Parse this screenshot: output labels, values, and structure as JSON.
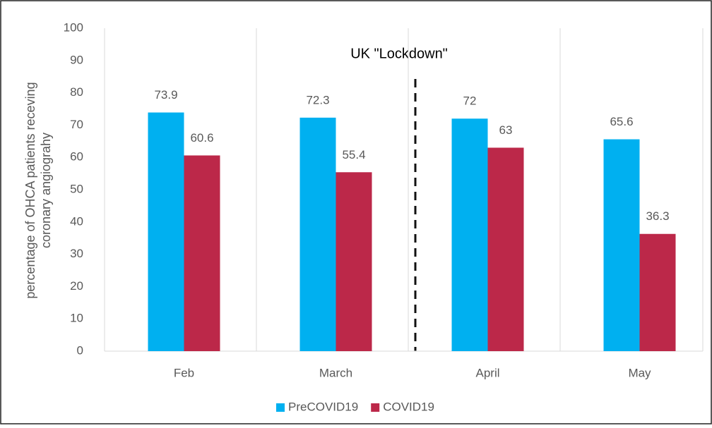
{
  "chart_data": {
    "type": "bar",
    "annotation": "UK \"Lockdown\"",
    "ylabel": [
      "percentage of  OHCA patients receving",
      "coronary angiograhy"
    ],
    "categories": [
      "Feb",
      "March",
      "April",
      "May"
    ],
    "series": [
      {
        "name": "PreCOVID19",
        "color": "#00b0f0",
        "values": [
          73.9,
          72.3,
          72,
          65.6
        ]
      },
      {
        "name": "COVID19",
        "color": "#bc2849",
        "values": [
          60.6,
          55.4,
          63,
          36.3
        ]
      }
    ],
    "ylim": [
      0,
      100
    ],
    "yticks": [
      0,
      10,
      20,
      30,
      40,
      50,
      60,
      70,
      80,
      90,
      100
    ],
    "grid": false,
    "legend": "bottom"
  }
}
